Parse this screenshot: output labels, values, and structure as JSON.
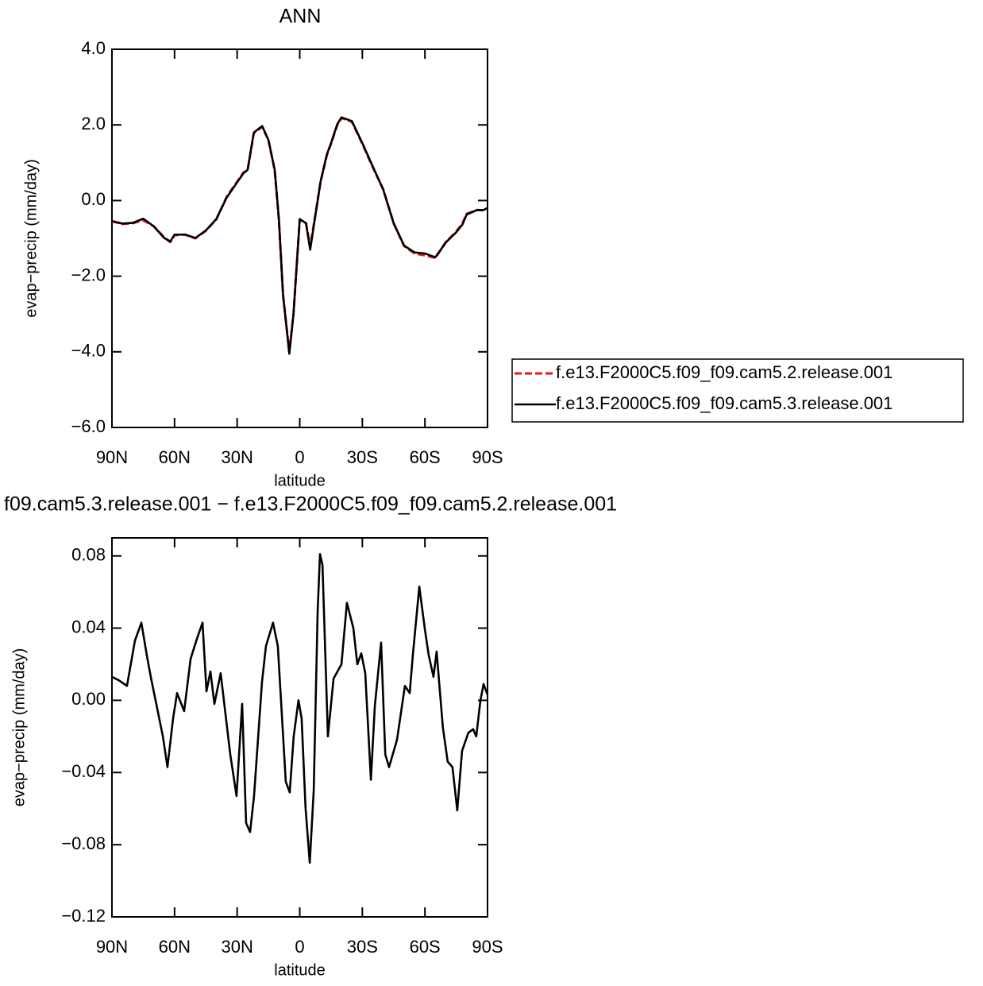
{
  "chart_data": [
    {
      "type": "line",
      "title": "ANN",
      "xlabel": "latitude",
      "ylabel": "evap−precip (mm/day)",
      "x": [
        90,
        85,
        80,
        75,
        70,
        65,
        62,
        60,
        55,
        50,
        45,
        40,
        35,
        30,
        27,
        25,
        22,
        18,
        15,
        12,
        10,
        8,
        5,
        3,
        0,
        -3,
        -5,
        -8,
        -10,
        -13,
        -15,
        -18,
        -20,
        -25,
        -30,
        -35,
        -40,
        -45,
        -50,
        -55,
        -60,
        -65,
        -70,
        -75,
        -78,
        -80,
        -85,
        -88,
        -90
      ],
      "series": [
        {
          "name": "f.e13.F2000C5.f09_f09.cam5.2.release.001",
          "color": "#e8141a",
          "linestyle": "dashed",
          "values": [
            -0.55,
            -0.62,
            -0.6,
            -0.52,
            -0.68,
            -0.97,
            -1.1,
            -0.92,
            -0.9,
            -1.0,
            -0.8,
            -0.5,
            0.1,
            0.5,
            0.74,
            0.8,
            1.78,
            1.95,
            1.6,
            0.8,
            -0.5,
            -2.5,
            -4.0,
            -3.0,
            -0.5,
            -0.6,
            -1.22,
            -0.2,
            0.5,
            1.2,
            1.5,
            2.0,
            2.18,
            2.08,
            1.5,
            0.88,
            0.3,
            -0.6,
            -1.2,
            -1.4,
            -1.45,
            -1.52,
            -1.1,
            -0.82,
            -0.6,
            -0.35,
            -0.25,
            -0.26,
            -0.2
          ]
        },
        {
          "name": "f.e13.F2000C5.f09_f09.cam5.3.release.001",
          "color": "#000000",
          "linestyle": "solid",
          "values": [
            -0.54,
            -0.61,
            -0.59,
            -0.48,
            -0.68,
            -0.99,
            -1.08,
            -0.9,
            -0.9,
            -0.99,
            -0.79,
            -0.49,
            0.08,
            0.48,
            0.72,
            0.81,
            1.8,
            1.97,
            1.6,
            0.81,
            -0.49,
            -2.5,
            -4.05,
            -3.0,
            -0.49,
            -0.6,
            -1.3,
            -0.21,
            0.51,
            1.22,
            1.52,
            2.02,
            2.2,
            2.1,
            1.52,
            0.9,
            0.29,
            -0.6,
            -1.19,
            -1.37,
            -1.4,
            -1.5,
            -1.11,
            -0.84,
            -0.63,
            -0.37,
            -0.25,
            -0.25,
            -0.2
          ]
        }
      ],
      "xlim": [
        90,
        -90
      ],
      "ylim": [
        -6,
        4
      ],
      "xticks": [
        {
          "value": 90,
          "label": "90N"
        },
        {
          "value": 60,
          "label": "60N"
        },
        {
          "value": 30,
          "label": "30N"
        },
        0,
        {
          "value": -30,
          "label": "30S"
        },
        {
          "value": -60,
          "label": "60S"
        },
        {
          "value": -90,
          "label": "90S"
        }
      ],
      "yticks": [
        {
          "value": 4,
          "label": "4.0"
        },
        {
          "value": 2,
          "label": "2.0"
        },
        {
          "value": 0,
          "label": "0.0"
        },
        {
          "value": -2,
          "label": "−2.0"
        },
        {
          "value": -4,
          "label": "−4.0"
        },
        {
          "value": -6,
          "label": "−6.0"
        }
      ],
      "legend": "right"
    },
    {
      "type": "line",
      "title": "f09.cam5.3.release.001 − f.e13.F2000C5.f09_f09.cam5.2.release.001",
      "xlabel": "latitude",
      "ylabel": "evap−precip (mm/day)",
      "x": [
        90,
        86.6,
        82.8,
        79,
        75.9,
        73.3,
        71.4,
        69.1,
        65.6,
        63.4,
        60.7,
        58.8,
        55.4,
        52.3,
        49.3,
        46.6,
        44.7,
        42.8,
        40.9,
        37.9,
        33.3,
        30.3,
        27.6,
        25.7,
        23.8,
        21.9,
        18.1,
        16.2,
        12.8,
        10.5,
        6.7,
        4.8,
        2.9,
        0.6,
        -0.9,
        -2.8,
        -4.8,
        -6.7,
        -8.6,
        -9.7,
        -10.9,
        -13.5,
        -16.2,
        -20,
        -22.6,
        -25.7,
        -27.6,
        -29.5,
        -31.4,
        -34.1,
        -36,
        -39,
        -41,
        -42.8,
        -46.6,
        -50.4,
        -52.7,
        -54.2,
        -57.3,
        -59.9,
        -61.8,
        -64.1,
        -65.6,
        -68.6,
        -70.9,
        -73.2,
        -75.5,
        -77.8,
        -80.8,
        -83.1,
        -84.6,
        -86.6,
        -88.1,
        -90
      ],
      "series": [
        {
          "color": "#000000",
          "linestyle": "solid",
          "values": [
            0.013,
            0.011,
            0.008,
            0.033,
            0.043,
            0.025,
            0.013,
            0.0,
            -0.02,
            -0.037,
            -0.01,
            0.004,
            -0.006,
            0.023,
            0.034,
            0.043,
            0.005,
            0.016,
            -0.002,
            0.015,
            -0.03,
            -0.053,
            -0.002,
            -0.068,
            -0.073,
            -0.053,
            0.01,
            0.03,
            0.043,
            0.03,
            -0.045,
            -0.051,
            -0.02,
            0.0,
            -0.01,
            -0.06,
            -0.09,
            -0.05,
            0.05,
            0.081,
            0.075,
            -0.02,
            0.012,
            0.02,
            0.054,
            0.04,
            0.02,
            0.026,
            0.015,
            -0.044,
            -0.003,
            0.032,
            -0.03,
            -0.037,
            -0.022,
            0.008,
            0.004,
            0.025,
            0.063,
            0.04,
            0.025,
            0.013,
            0.027,
            -0.015,
            -0.034,
            -0.037,
            -0.061,
            -0.028,
            -0.018,
            -0.016,
            -0.02,
            0.0,
            0.009,
            0.003
          ]
        }
      ],
      "xlim": [
        90,
        -90
      ],
      "ylim": [
        -0.12,
        0.09
      ],
      "xticks": [
        {
          "value": 90,
          "label": "90N"
        },
        {
          "value": 60,
          "label": "60N"
        },
        {
          "value": 30,
          "label": "30N"
        },
        0,
        {
          "value": -30,
          "label": "30S"
        },
        {
          "value": -60,
          "label": "60S"
        },
        {
          "value": -90,
          "label": "90S"
        }
      ],
      "yticks": [
        0.08,
        0.04,
        {
          "value": 0,
          "label": "0.00"
        },
        {
          "value": -0.04,
          "label": "−0.04"
        },
        {
          "value": -0.08,
          "label": "−0.08"
        },
        {
          "value": -0.12,
          "label": "−0.12"
        }
      ]
    }
  ]
}
